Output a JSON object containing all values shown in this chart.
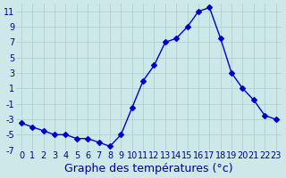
{
  "hours": [
    0,
    1,
    2,
    3,
    4,
    5,
    6,
    7,
    8,
    9,
    10,
    11,
    12,
    13,
    14,
    15,
    16,
    17,
    18,
    19,
    20,
    21,
    22,
    23
  ],
  "temperatures": [
    -3.5,
    -4.0,
    -4.5,
    -5.0,
    -5.0,
    -5.5,
    -5.5,
    -6.0,
    -6.5,
    -5.0,
    -1.5,
    2.0,
    4.0,
    7.0,
    7.5,
    9.0,
    11.0,
    11.5,
    7.5,
    3.0,
    1.0,
    -0.5,
    -2.5,
    -3.0
  ],
  "line_color": "#0000cc",
  "marker": "D",
  "marker_size": 3,
  "bg_color": "#cce8e8",
  "grid_color": "#aacccc",
  "xlabel": "Graphe des températures (°c)",
  "xlabel_color": "#00008b",
  "xlabel_fontsize": 9,
  "tick_color": "#00008b",
  "tick_fontsize": 7,
  "xlim": [
    -0.5,
    23.5
  ],
  "ylim": [
    -7,
    12
  ],
  "yticks": [
    -7,
    -5,
    -3,
    -1,
    1,
    3,
    5,
    7,
    9,
    11
  ],
  "xticks": [
    0,
    1,
    2,
    3,
    4,
    5,
    6,
    7,
    8,
    9,
    10,
    11,
    12,
    13,
    14,
    15,
    16,
    17,
    18,
    19,
    20,
    21,
    22,
    23
  ]
}
